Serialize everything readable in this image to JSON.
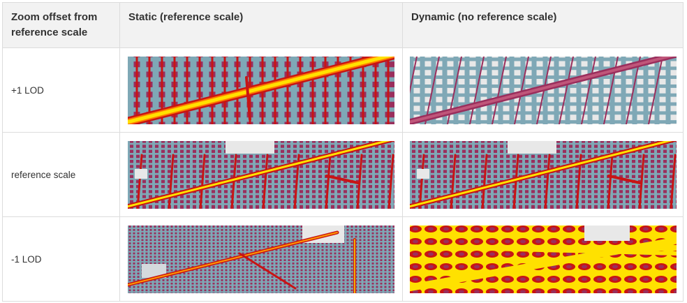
{
  "headers": [
    "Zoom offset from reference scale",
    "Static (reference scale)",
    "Dynamic (no reference scale)"
  ],
  "rows": [
    {
      "label": "+1 LOD",
      "static": {
        "icon": "heatmap-zoomed-in-static",
        "intensity": "high"
      },
      "dynamic": {
        "icon": "heatmap-zoomed-in-dynamic",
        "intensity": "low"
      }
    },
    {
      "label": "reference scale",
      "static": {
        "icon": "heatmap-reference-static",
        "intensity": "medium"
      },
      "dynamic": {
        "icon": "heatmap-reference-dynamic",
        "intensity": "medium"
      }
    },
    {
      "label": "-1 LOD",
      "static": {
        "icon": "heatmap-zoomed-out-static",
        "intensity": "low"
      },
      "dynamic": {
        "icon": "heatmap-zoomed-out-dynamic",
        "intensity": "very-high"
      }
    }
  ],
  "colors": {
    "border": "#dcdcdc",
    "header_bg": "#f2f2f2",
    "map_bg": "#c9c9c9",
    "cold": "#7fa8b6",
    "mid": "#9a2e5c",
    "hot": "#c81414",
    "hottest": "#ffe100"
  }
}
